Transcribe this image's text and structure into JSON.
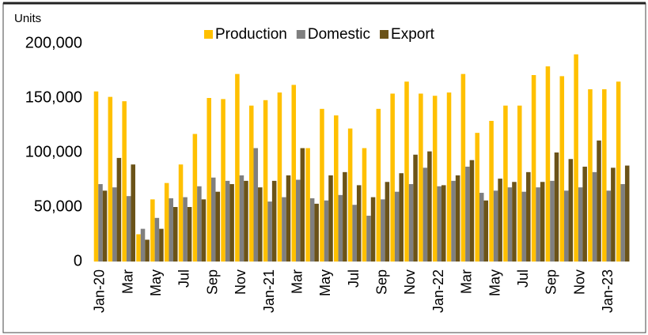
{
  "chart_data": {
    "type": "bar",
    "y_label": "Units",
    "categories": [
      "Jan-20",
      null,
      "Mar",
      null,
      "May",
      null,
      "Jul",
      null,
      "Sep",
      null,
      "Nov",
      null,
      "Jan-21",
      null,
      "Mar",
      null,
      "May",
      null,
      "Jul",
      null,
      "Sep",
      null,
      "Nov",
      null,
      "Jan-22",
      null,
      "Mar",
      null,
      "May",
      null,
      "Jul",
      null,
      "Sep",
      null,
      "Nov",
      null,
      "Jan-23",
      null
    ],
    "series": [
      {
        "name": "Production",
        "color": "#ffc000",
        "values": [
          156000,
          151000,
          147000,
          25000,
          57000,
          72000,
          89000,
          117000,
          150000,
          149000,
          172000,
          143000,
          148000,
          155000,
          162000,
          104000,
          140000,
          134000,
          122000,
          104000,
          140000,
          154000,
          165000,
          154000,
          152000,
          155000,
          172000,
          118000,
          129000,
          143000,
          143000,
          171000,
          179000,
          170000,
          190000,
          158000,
          158000,
          165000
        ]
      },
      {
        "name": "Domestic",
        "color": "#7f7f7f",
        "values": [
          71000,
          68000,
          60000,
          30000,
          40000,
          58000,
          59000,
          69000,
          77000,
          74000,
          79000,
          104000,
          55000,
          59000,
          75000,
          58000,
          56000,
          61000,
          52000,
          42000,
          57000,
          64000,
          71000,
          86000,
          69000,
          74000,
          87000,
          63000,
          65000,
          68000,
          64000,
          68000,
          74000,
          65000,
          68000,
          82000,
          65000,
          71000
        ]
      },
      {
        "name": "Export",
        "color": "#6b5318",
        "values": [
          65000,
          95000,
          89000,
          20000,
          30000,
          50000,
          50000,
          57000,
          64000,
          71000,
          74000,
          68000,
          74000,
          79000,
          104000,
          53000,
          79000,
          82000,
          70000,
          59000,
          73000,
          81000,
          98000,
          101000,
          70000,
          79000,
          93000,
          56000,
          76000,
          73000,
          82000,
          73000,
          100000,
          94000,
          87000,
          111000,
          86000,
          88000
        ]
      }
    ],
    "ylim": [
      0,
      200000
    ],
    "yticks": [
      0,
      {
        "value": 50000,
        "label": "50,000"
      },
      {
        "value": 100000,
        "label": "100,000"
      },
      {
        "value": 150000,
        "label": "150,000"
      },
      {
        "value": 200000,
        "label": "200,000"
      }
    ],
    "legend": "top"
  }
}
